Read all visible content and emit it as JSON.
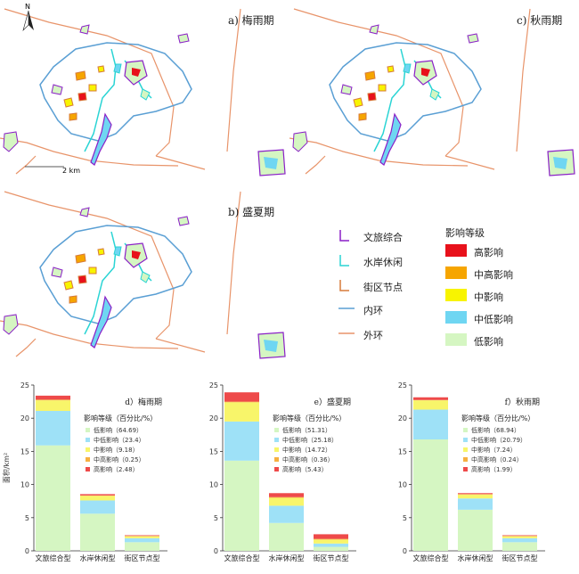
{
  "maps": [
    {
      "id": "a",
      "title": "a) 梅雨期"
    },
    {
      "id": "c",
      "title": "c) 秋雨期"
    },
    {
      "id": "b",
      "title": "b) 盛夏期"
    }
  ],
  "scale_text": "2 km",
  "north_label": "N",
  "legend_top": {
    "layers": [
      {
        "label": "文旅综合",
        "color": "#8a1fc7"
      },
      {
        "label": "水岸休闲",
        "color": "#2ad4d4"
      },
      {
        "label": "街区节点",
        "color": "#d77b3a"
      },
      {
        "label": "内环",
        "color": "#5a9fd4"
      },
      {
        "label": "外环",
        "color": "#e8946a"
      }
    ],
    "impact_title": "影响等级",
    "impacts": [
      {
        "label": "高影响",
        "color": "#e8111b"
      },
      {
        "label": "中高影响",
        "color": "#f6a500"
      },
      {
        "label": "中影响",
        "color": "#f8f400"
      },
      {
        "label": "中低影响",
        "color": "#6fd6f2"
      },
      {
        "label": "低影响",
        "color": "#d5f6c2"
      }
    ]
  },
  "chart_data": [
    {
      "type": "bar",
      "stacked": true,
      "title": "d）梅雨期",
      "ylabel": "面积/km²",
      "ylim": [
        0,
        25
      ],
      "yticks": [
        0,
        5,
        10,
        15,
        20,
        25
      ],
      "categories": [
        "文旅综合型",
        "水岸休闲型",
        "街区节点型"
      ],
      "legend_title": "影响等级（百分比/%）",
      "series": [
        {
          "name": "低影响",
          "pct": "64.69",
          "color": "#d5f6c2",
          "values": [
            15.9,
            5.6,
            1.3
          ]
        },
        {
          "name": "中低影响",
          "pct": "23.4",
          "color": "#9ee1f7",
          "values": [
            5.2,
            2.0,
            0.6
          ]
        },
        {
          "name": "中影响",
          "pct": "9.18",
          "color": "#f8f56a",
          "values": [
            1.6,
            0.7,
            0.3
          ]
        },
        {
          "name": "中高影响",
          "pct": "0.25",
          "color": "#f6b040",
          "values": [
            0.1,
            0.05,
            0.05
          ]
        },
        {
          "name": "高影响",
          "pct": "2.48",
          "color": "#ee4a4a",
          "values": [
            0.6,
            0.2,
            0.1
          ]
        }
      ]
    },
    {
      "type": "bar",
      "stacked": true,
      "title": "e）盛夏期",
      "ylabel": "",
      "ylim": [
        0,
        25
      ],
      "yticks": [
        0,
        5,
        10,
        15,
        20,
        25
      ],
      "categories": [
        "文旅综合型",
        "水岸休闲型",
        "街区节点型"
      ],
      "legend_title": "影响等级（百分比/%）",
      "series": [
        {
          "name": "低影响",
          "pct": "51.31",
          "color": "#d5f6c2",
          "values": [
            13.6,
            4.2,
            0.6
          ]
        },
        {
          "name": "中低影响",
          "pct": "25.18",
          "color": "#9ee1f7",
          "values": [
            5.9,
            2.6,
            0.5
          ]
        },
        {
          "name": "中影响",
          "pct": "14.72",
          "color": "#f8f56a",
          "values": [
            2.9,
            1.2,
            0.6
          ]
        },
        {
          "name": "中高影响",
          "pct": "0.36",
          "color": "#f6b040",
          "values": [
            0.1,
            0.1,
            0.1
          ]
        },
        {
          "name": "高影响",
          "pct": "5.43",
          "color": "#ee4a4a",
          "values": [
            1.4,
            0.6,
            0.7
          ]
        }
      ]
    },
    {
      "type": "bar",
      "stacked": true,
      "title": "f）秋雨期",
      "ylabel": "",
      "ylim": [
        0,
        25
      ],
      "yticks": [
        0,
        5,
        10,
        15,
        20,
        25
      ],
      "categories": [
        "文旅综合型",
        "水岸休闲型",
        "街区节点型"
      ],
      "legend_title": "影响等级（百分比/%）",
      "series": [
        {
          "name": "低影响",
          "pct": "68.94",
          "color": "#d5f6c2",
          "values": [
            16.8,
            6.2,
            1.3
          ]
        },
        {
          "name": "中低影响",
          "pct": "20.79",
          "color": "#9ee1f7",
          "values": [
            4.5,
            1.7,
            0.6
          ]
        },
        {
          "name": "中影响",
          "pct": "7.24",
          "color": "#f8f56a",
          "values": [
            1.4,
            0.6,
            0.3
          ]
        },
        {
          "name": "中高影响",
          "pct": "0.24",
          "color": "#f6b040",
          "values": [
            0.05,
            0.05,
            0.05
          ]
        },
        {
          "name": "高影响",
          "pct": "1.99",
          "color": "#ee4a4a",
          "values": [
            0.4,
            0.15,
            0.1
          ]
        }
      ]
    }
  ]
}
